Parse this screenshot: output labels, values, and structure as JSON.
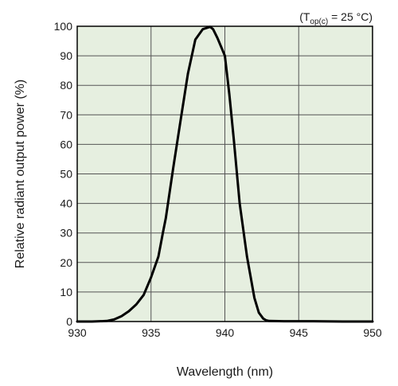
{
  "chart_data": {
    "type": "line",
    "xlabel": "Wavelength (nm)",
    "ylabel": "Relative radiant output power (%)",
    "annotation": {
      "prefix": "(T",
      "subscript": "op(c)",
      "suffix": " = 25 °C)"
    },
    "xlim": [
      930,
      950
    ],
    "ylim": [
      0,
      100
    ],
    "xticks": [
      930,
      935,
      940,
      945,
      950
    ],
    "yticks": [
      0,
      10,
      20,
      30,
      40,
      50,
      60,
      70,
      80,
      90,
      100
    ],
    "grid": true,
    "colors": {
      "plot_background": "#e6efe0",
      "grid": "#555555",
      "line": "#000000"
    },
    "series": [
      {
        "x": [
          930,
          931,
          932,
          932.5,
          933,
          933.5,
          934,
          934.5,
          935,
          935.5,
          935.8,
          936,
          936.5,
          937,
          937.5,
          938,
          938.5,
          939,
          939.2,
          939.5,
          940,
          940.3,
          940.6,
          941,
          941.5,
          942,
          942.3,
          942.6,
          942.8,
          943,
          944,
          946,
          948,
          950
        ],
        "y": [
          0,
          0,
          0.2,
          0.7,
          1.8,
          3.5,
          5.8,
          9,
          15,
          22,
          30,
          35,
          52,
          68,
          84,
          95.5,
          99,
          99.8,
          99,
          96,
          90,
          77,
          62,
          40,
          22,
          8,
          3,
          1,
          0.4,
          0.2,
          0.1,
          0.1,
          0,
          0
        ]
      }
    ]
  }
}
